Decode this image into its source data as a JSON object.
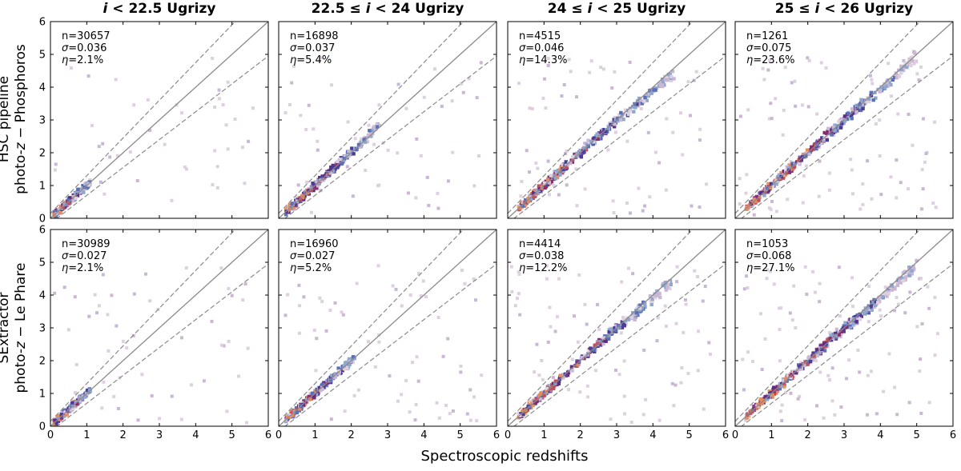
{
  "figure": {
    "xlabel": "Spectroscopic redshifts",
    "col_titles": [
      {
        "pre": "",
        "var": "i",
        "post": " < 22.5 Ugrizy"
      },
      {
        "pre": "22.5 ≤ ",
        "var": "i",
        "post": " < 24 Ugrizy"
      },
      {
        "pre": "24 ≤ ",
        "var": "i",
        "post": " < 25 Ugrizy"
      },
      {
        "pre": "25 ≤ ",
        "var": "i",
        "post": " < 26 Ugrizy"
      }
    ],
    "row_labels": [
      {
        "line1": "HSC pipeline",
        "line2_pre": "photo-",
        "line2_var": "z",
        "line2_post": " − Phosphoros"
      },
      {
        "line1": "SExtractor",
        "line2_pre": "photo-",
        "line2_var": "z",
        "line2_post": " − Le Phare"
      }
    ]
  },
  "chart_data": [
    {
      "type": "heatmap",
      "row": 0,
      "col": 0,
      "n": "n=30657",
      "sigma": "0.036",
      "eta": "2.1%",
      "x_range": [
        0,
        6
      ],
      "y_range": [
        0,
        6
      ],
      "xticks": [
        "0",
        "1",
        "2",
        "3",
        "4",
        "5",
        "6"
      ],
      "yticks": [
        "0",
        "1",
        "2",
        "3",
        "4",
        "5",
        "6"
      ],
      "lines": {
        "identity": [
          [
            0,
            0
          ],
          [
            6,
            6
          ]
        ],
        "outlier_upper_slope": 1.15,
        "outlier_lower_slope": 0.85
      },
      "density_ridge": [
        [
          0.1,
          0.1
        ],
        [
          0.3,
          0.3
        ],
        [
          0.5,
          0.5
        ],
        [
          0.7,
          0.7
        ],
        [
          0.9,
          0.9
        ],
        [
          1.1,
          1.1
        ]
      ]
    },
    {
      "type": "heatmap",
      "row": 0,
      "col": 1,
      "n": "n=16898",
      "sigma": "0.037",
      "eta": "5.4%",
      "x_range": [
        0,
        6
      ],
      "y_range": [
        0,
        6
      ],
      "xticks": [
        "0",
        "1",
        "2",
        "3",
        "4",
        "5",
        "6"
      ],
      "yticks": [
        "0",
        "1",
        "2",
        "3",
        "4",
        "5",
        "6"
      ],
      "lines": {
        "identity": [
          [
            0,
            0
          ],
          [
            6,
            6
          ]
        ],
        "outlier_upper_slope": 1.15,
        "outlier_lower_slope": 0.85
      },
      "density_ridge": [
        [
          0.2,
          0.2
        ],
        [
          0.5,
          0.5
        ],
        [
          0.8,
          0.8
        ],
        [
          1.1,
          1.1
        ],
        [
          1.4,
          1.4
        ],
        [
          1.8,
          1.8
        ],
        [
          2.3,
          2.3
        ],
        [
          2.8,
          2.9
        ]
      ]
    },
    {
      "type": "heatmap",
      "row": 0,
      "col": 2,
      "n": "n=4515",
      "sigma": "0.046",
      "eta": "14.3%",
      "x_range": [
        0,
        6
      ],
      "y_range": [
        0,
        6
      ],
      "xticks": [
        "0",
        "1",
        "2",
        "3",
        "4",
        "5",
        "6"
      ],
      "yticks": [
        "0",
        "1",
        "2",
        "3",
        "4",
        "5",
        "6"
      ],
      "lines": {
        "identity": [
          [
            0,
            0
          ],
          [
            6,
            6
          ]
        ],
        "outlier_upper_slope": 1.15,
        "outlier_lower_slope": 0.85
      },
      "density_ridge": [
        [
          0.3,
          0.3
        ],
        [
          0.7,
          0.7
        ],
        [
          1.0,
          1.0
        ],
        [
          1.3,
          1.3
        ],
        [
          1.6,
          1.6
        ],
        [
          2.3,
          2.3
        ],
        [
          2.6,
          2.6
        ],
        [
          3.0,
          3.0
        ],
        [
          3.6,
          3.5
        ],
        [
          4.2,
          4.1
        ],
        [
          4.6,
          4.4
        ]
      ]
    },
    {
      "type": "heatmap",
      "row": 0,
      "col": 3,
      "n": "n=1261",
      "sigma": "0.075",
      "eta": "23.6%",
      "x_range": [
        0,
        6
      ],
      "y_range": [
        0,
        6
      ],
      "xticks": [
        "0",
        "1",
        "2",
        "3",
        "4",
        "5",
        "6"
      ],
      "yticks": [
        "0",
        "1",
        "2",
        "3",
        "4",
        "5",
        "6"
      ],
      "lines": {
        "identity": [
          [
            0,
            0
          ],
          [
            6,
            6
          ]
        ],
        "outlier_upper_slope": 1.15,
        "outlier_lower_slope": 0.85
      },
      "density_ridge": [
        [
          0.3,
          0.3
        ],
        [
          0.8,
          0.8
        ],
        [
          1.2,
          1.2
        ],
        [
          1.6,
          1.6
        ],
        [
          2.2,
          2.2
        ],
        [
          2.6,
          2.6
        ],
        [
          3.0,
          3.0
        ],
        [
          3.4,
          3.4
        ],
        [
          3.9,
          3.8
        ],
        [
          4.5,
          4.4
        ],
        [
          5.0,
          4.9
        ]
      ]
    },
    {
      "type": "heatmap",
      "row": 1,
      "col": 0,
      "n": "n=30989",
      "sigma": "0.027",
      "eta": "2.1%",
      "x_range": [
        0,
        6
      ],
      "y_range": [
        0,
        6
      ],
      "xticks": [
        "0",
        "1",
        "2",
        "3",
        "4",
        "5",
        "6"
      ],
      "yticks": [
        "0",
        "1",
        "2",
        "3",
        "4",
        "5",
        "6"
      ],
      "lines": {
        "identity": [
          [
            0,
            0
          ],
          [
            6,
            6
          ]
        ],
        "outlier_upper_slope": 1.15,
        "outlier_lower_slope": 0.85
      },
      "density_ridge": [
        [
          0.1,
          0.1
        ],
        [
          0.3,
          0.3
        ],
        [
          0.5,
          0.5
        ],
        [
          0.7,
          0.7
        ],
        [
          0.9,
          0.9
        ],
        [
          1.1,
          1.1
        ]
      ]
    },
    {
      "type": "heatmap",
      "row": 1,
      "col": 1,
      "n": "n=16960",
      "sigma": "0.027",
      "eta": "5.2%",
      "x_range": [
        0,
        6
      ],
      "y_range": [
        0,
        6
      ],
      "xticks": [
        "0",
        "1",
        "2",
        "3",
        "4",
        "5",
        "6"
      ],
      "yticks": [
        "0",
        "1",
        "2",
        "3",
        "4",
        "5",
        "6"
      ],
      "lines": {
        "identity": [
          [
            0,
            0
          ],
          [
            6,
            6
          ]
        ],
        "outlier_upper_slope": 1.15,
        "outlier_lower_slope": 0.85
      },
      "density_ridge": [
        [
          0.2,
          0.2
        ],
        [
          0.5,
          0.5
        ],
        [
          0.8,
          0.8
        ],
        [
          1.1,
          1.1
        ],
        [
          1.4,
          1.4
        ],
        [
          1.8,
          1.8
        ],
        [
          2.1,
          2.1
        ]
      ]
    },
    {
      "type": "heatmap",
      "row": 1,
      "col": 2,
      "n": "n=4414",
      "sigma": "0.038",
      "eta": "12.2%",
      "x_range": [
        0,
        6
      ],
      "y_range": [
        0,
        6
      ],
      "xticks": [
        "0",
        "1",
        "2",
        "3",
        "4",
        "5",
        "6"
      ],
      "yticks": [
        "0",
        "1",
        "2",
        "3",
        "4",
        "5",
        "6"
      ],
      "lines": {
        "identity": [
          [
            0,
            0
          ],
          [
            6,
            6
          ]
        ],
        "outlier_upper_slope": 1.15,
        "outlier_lower_slope": 0.85
      },
      "density_ridge": [
        [
          0.3,
          0.3
        ],
        [
          0.7,
          0.7
        ],
        [
          1.0,
          1.0
        ],
        [
          1.3,
          1.3
        ],
        [
          2.2,
          2.2
        ],
        [
          2.6,
          2.6
        ],
        [
          3.0,
          3.0
        ],
        [
          3.5,
          3.4
        ],
        [
          4.0,
          3.9
        ],
        [
          4.5,
          4.4
        ]
      ]
    },
    {
      "type": "heatmap",
      "row": 1,
      "col": 3,
      "n": "n=1053",
      "sigma": "0.068",
      "eta": "27.1%",
      "x_range": [
        0,
        6
      ],
      "y_range": [
        0,
        6
      ],
      "xticks": [
        "0",
        "1",
        "2",
        "3",
        "4",
        "5",
        "6"
      ],
      "yticks": [
        "0",
        "1",
        "2",
        "3",
        "4",
        "5",
        "6"
      ],
      "lines": {
        "identity": [
          [
            0,
            0
          ],
          [
            6,
            6
          ]
        ],
        "outlier_upper_slope": 1.15,
        "outlier_lower_slope": 0.85
      },
      "density_ridge": [
        [
          0.3,
          0.3
        ],
        [
          0.8,
          0.8
        ],
        [
          1.2,
          1.2
        ],
        [
          1.6,
          1.6
        ],
        [
          2.2,
          2.2
        ],
        [
          2.6,
          2.6
        ],
        [
          3.1,
          3.1
        ],
        [
          3.5,
          3.4
        ],
        [
          3.9,
          3.8
        ],
        [
          4.5,
          4.4
        ],
        [
          5.0,
          4.9
        ]
      ]
    }
  ]
}
